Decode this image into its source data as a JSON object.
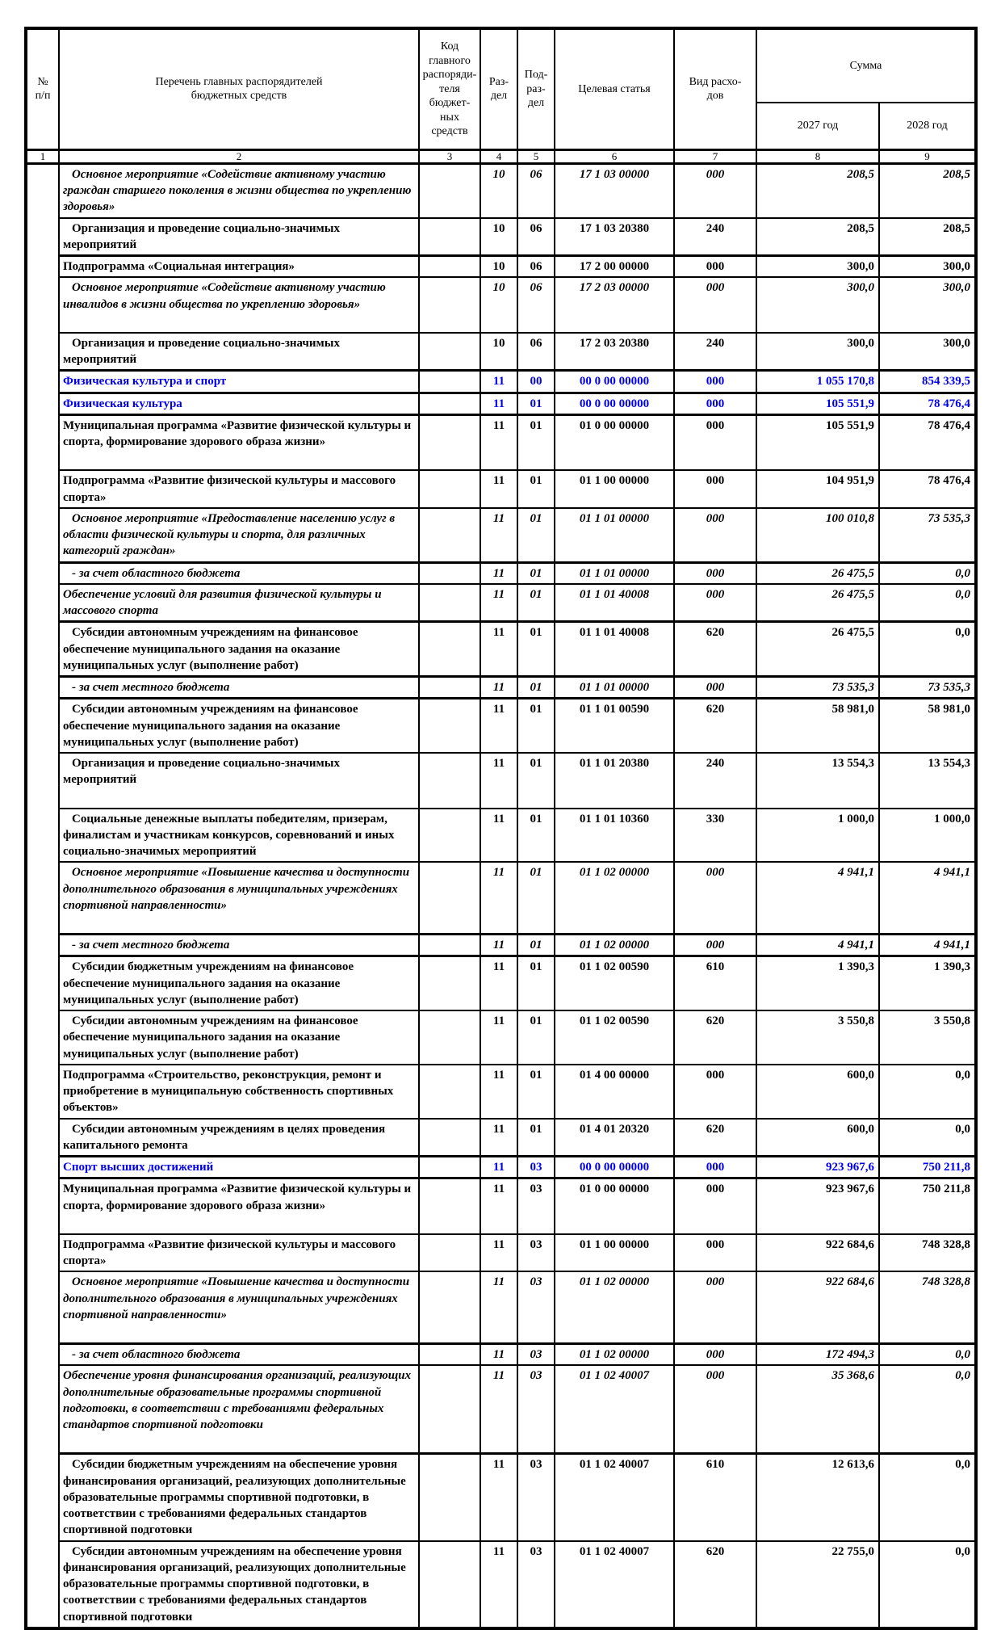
{
  "colors": {
    "text": "#000000",
    "section_blue": "#0000EE",
    "border": "#000000"
  },
  "header": {
    "num": "№\nп/п",
    "list": "Перечень главных распорядителей\nбюджетных средств",
    "code": "Код\nглавного\nраспоряди-\nтеля бюджет-\nных средств",
    "razdel": "Раз-\nдел",
    "podrazdel": "Под-\nраз-\nдел",
    "target": "Целевая статья",
    "vid": "Вид расхо-\nдов",
    "sum": "Сумма",
    "year1": "2027 год",
    "year2": "2028 год",
    "col_numbers": [
      "1",
      "2",
      "3",
      "4",
      "5",
      "6",
      "7",
      "8",
      "9"
    ]
  },
  "rows": [
    {
      "name": "Основное мероприятие «Содействие активному участию граждан старшего поколения в жизни общества по укреплению здоровья»",
      "rz": "10",
      "pr": "06",
      "csr": "17 1 03 00000",
      "vr": "000",
      "y2027": "208,5",
      "y2028": "208,5",
      "style": "i",
      "indent": 1
    },
    {
      "name": "Организация и проведение социально-значимых мероприятий",
      "rz": "10",
      "pr": "06",
      "csr": "17 1 03 20380",
      "vr": "240",
      "y2027": "208,5",
      "y2028": "208,5",
      "style": "b",
      "indent": 1
    },
    {
      "name": "Подпрограмма «Социальная интеграция»",
      "rz": "10",
      "pr": "06",
      "csr": "17 2 00 00000",
      "vr": "000",
      "y2027": "300,0",
      "y2028": "300,0",
      "style": "b",
      "compact": true,
      "thick_top": true
    },
    {
      "name": "Основное мероприятие «Содействие активному участию инвалидов в жизни общества по укреплению здоровья»",
      "rz": "10",
      "pr": "06",
      "csr": "17 2 03 00000",
      "vr": "000",
      "y2027": "300,0",
      "y2028": "300,0",
      "style": "i",
      "indent": 1,
      "gap": true
    },
    {
      "name": "Организация и проведение социально-значимых мероприятий",
      "rz": "10",
      "pr": "06",
      "csr": "17 2 03 20380",
      "vr": "240",
      "y2027": "300,0",
      "y2028": "300,0",
      "style": "b",
      "indent": 1
    },
    {
      "name": "Физическая культура и спорт",
      "rz": "11",
      "pr": "00",
      "csr": "00 0 00 00000",
      "vr": "000",
      "y2027": "1 055 170,8",
      "y2028": "854 339,5",
      "style": "blue",
      "compact": true
    },
    {
      "name": "Физическая культура",
      "rz": "11",
      "pr": "01",
      "csr": "00 0 00 00000",
      "vr": "000",
      "y2027": "105 551,9",
      "y2028": "78 476,4",
      "style": "blue",
      "compact": true
    },
    {
      "name": "Муниципальная программа «Развитие физической культуры и спорта, формирование здорового образа жизни»",
      "rz": "11",
      "pr": "01",
      "csr": "01 0 00 00000",
      "vr": "000",
      "y2027": "105 551,9",
      "y2028": "78 476,4",
      "style": "b",
      "gap": true
    },
    {
      "name": "Подпрограмма «Развитие физической культуры и массового спорта»",
      "rz": "11",
      "pr": "01",
      "csr": "01 1 00 00000",
      "vr": "000",
      "y2027": "104 951,9",
      "y2028": "78 476,4",
      "style": "b"
    },
    {
      "name": "Основное мероприятие «Предоставление населению услуг в области физической культуры и спорта, для различных категорий граждан»",
      "rz": "11",
      "pr": "01",
      "csr": "01 1 01 00000",
      "vr": "000",
      "y2027": "100 010,8",
      "y2028": "73 535,3",
      "style": "i",
      "indent": 1
    },
    {
      "name": "- за счет областного бюджета",
      "rz": "11",
      "pr": "01",
      "csr": "01 1 01 00000",
      "vr": "000",
      "y2027": "26 475,5",
      "y2028": "0,0",
      "style": "i",
      "compact": true,
      "indent": 1,
      "thick_top": true
    },
    {
      "name": "Обеспечение условий для развития физической культуры и массового спорта",
      "rz": "11",
      "pr": "01",
      "csr": "01 1 01 40008",
      "vr": "000",
      "y2027": "26 475,5",
      "y2028": "0,0",
      "style": "i",
      "compact": true
    },
    {
      "name": "Субсидии автономным учреждениям на финансовое обеспечение муниципального задания на оказание муниципальных услуг (выполнение работ)",
      "rz": "11",
      "pr": "01",
      "csr": "01 1 01 40008",
      "vr": "620",
      "y2027": "26 475,5",
      "y2028": "0,0",
      "style": "b",
      "indent": 1,
      "thick_top": true
    },
    {
      "name": "- за счет местного бюджета",
      "rz": "11",
      "pr": "01",
      "csr": "01 1 01 00000",
      "vr": "000",
      "y2027": "73 535,3",
      "y2028": "73 535,3",
      "style": "i",
      "compact": true,
      "indent": 1,
      "thick_top": true
    },
    {
      "name": "Субсидии автономным учреждениям на финансовое обеспечение муниципального задания на оказание муниципальных услуг (выполнение работ)",
      "rz": "11",
      "pr": "01",
      "csr": "01 1 01 00590",
      "vr": "620",
      "y2027": "58 981,0",
      "y2028": "58 981,0",
      "style": "b",
      "indent": 1,
      "thick_top": true
    },
    {
      "name": "Организация и проведение социально-значимых мероприятий",
      "rz": "11",
      "pr": "01",
      "csr": "01 1 01 20380",
      "vr": "240",
      "y2027": "13 554,3",
      "y2028": "13 554,3",
      "style": "b",
      "indent": 1,
      "gap": true
    },
    {
      "name": "Социальные денежные выплаты победителям, призерам, финалистам и участникам конкурсов, соревнований и иных социально-значимых мероприятий",
      "rz": "11",
      "pr": "01",
      "csr": "01 1 01 10360",
      "vr": "330",
      "y2027": "1 000,0",
      "y2028": "1 000,0",
      "style": "b",
      "indent": 1
    },
    {
      "name": "Основное мероприятие «Повышение качества и доступности дополнительного образования в муниципальных учреждениях спортивной направленности»",
      "rz": "11",
      "pr": "01",
      "csr": "01 1 02 00000",
      "vr": "000",
      "y2027": "4 941,1",
      "y2028": "4 941,1",
      "style": "i",
      "indent": 1,
      "gap": true
    },
    {
      "name": "- за счет местного бюджета",
      "rz": "11",
      "pr": "01",
      "csr": "01 1 02 00000",
      "vr": "000",
      "y2027": "4 941,1",
      "y2028": "4 941,1",
      "style": "i",
      "compact": true,
      "indent": 1,
      "thick_top": true
    },
    {
      "name": "Субсидии бюджетным учреждениям на финансовое обеспечение муниципального задания на оказание муниципальных услуг (выполнение работ)",
      "rz": "11",
      "pr": "01",
      "csr": "01 1 02 00590",
      "vr": "610",
      "y2027": "1 390,3",
      "y2028": "1 390,3",
      "style": "b",
      "indent": 1,
      "thick_top": true
    },
    {
      "name": "Субсидии автономным учреждениям на финансовое обеспечение муниципального задания на оказание муниципальных услуг (выполнение работ)",
      "rz": "11",
      "pr": "01",
      "csr": "01 1 02 00590",
      "vr": "620",
      "y2027": "3 550,8",
      "y2028": "3 550,8",
      "style": "b",
      "indent": 1
    },
    {
      "name": "Подпрограмма «Строительство, реконструкция, ремонт и приобретение в муниципальную собственность спортивных объектов»",
      "rz": "11",
      "pr": "01",
      "csr": "01 4 00 00000",
      "vr": "000",
      "y2027": "600,0",
      "y2028": "0,0",
      "style": "b"
    },
    {
      "name": "Субсидии  автономным учреждениям в целях проведения капитального ремонта",
      "rz": "11",
      "pr": "01",
      "csr": "01 4 01 20320",
      "vr": "620",
      "y2027": "600,0",
      "y2028": "0,0",
      "style": "b",
      "indent": 1
    },
    {
      "name": "Спорт высших достижений",
      "rz": "11",
      "pr": "03",
      "csr": "00 0 00 00000",
      "vr": "000",
      "y2027": "923 967,6",
      "y2028": "750 211,8",
      "style": "blue",
      "compact": true
    },
    {
      "name": "Муниципальная программа «Развитие физической культуры и спорта, формирование здорового образа жизни»",
      "rz": "11",
      "pr": "03",
      "csr": "01 0 00 00000",
      "vr": "000",
      "y2027": "923 967,6",
      "y2028": "750 211,8",
      "style": "b",
      "gap": true
    },
    {
      "name": "Подпрограмма «Развитие физической культуры и массового спорта»",
      "rz": "11",
      "pr": "03",
      "csr": "01 1 00 00000",
      "vr": "000",
      "y2027": "922 684,6",
      "y2028": "748 328,8",
      "style": "b"
    },
    {
      "name": "Основное мероприятие «Повышение качества и доступности дополнительного образования в муниципальных учреждениях спортивной направленности»",
      "rz": "11",
      "pr": "03",
      "csr": "01 1 02 00000",
      "vr": "000",
      "y2027": "922 684,6",
      "y2028": "748 328,8",
      "style": "i",
      "indent": 1,
      "gap": true
    },
    {
      "name": "- за счет областного бюджета",
      "rz": "11",
      "pr": "03",
      "csr": "01 1 02 00000",
      "vr": "000",
      "y2027": "172 494,3",
      "y2028": "0,0",
      "style": "i",
      "compact": true,
      "indent": 1,
      "thick_top": true
    },
    {
      "name": "Обеспечение уровня финансирования организаций, реализующих дополнительные образовательные программы спортивной подготовки, в соответствии с требованиями федеральных стандартов спортивной подготовки",
      "rz": "11",
      "pr": "03",
      "csr": "01 1 02 40007",
      "vr": "000",
      "y2027": "35 368,6",
      "y2028": "0,0",
      "style": "i",
      "gap": true
    },
    {
      "name": "Субсидии бюджетным учреждениям на обеспечение уровня финансирования организаций, реализующих дополнительные образовательные программы спортивной подготовки, в соответствии с требованиями федеральных стандартов спортивной подготовки",
      "rz": "11",
      "pr": "03",
      "csr": "01 1 02 40007",
      "vr": "610",
      "y2027": "12 613,6",
      "y2028": "0,0",
      "style": "b",
      "indent": 1,
      "thick_top": true
    },
    {
      "name": "Субсидии автономным учреждениям на обеспечение уровня финансирования организаций, реализующих дополнительные образовательные программы спортивной подготовки, в соответствии с требованиями федеральных стандартов спортивной подготовки",
      "rz": "11",
      "pr": "03",
      "csr": "01 1 02 40007",
      "vr": "620",
      "y2027": "22 755,0",
      "y2028": "0,0",
      "style": "b",
      "indent": 1
    }
  ]
}
